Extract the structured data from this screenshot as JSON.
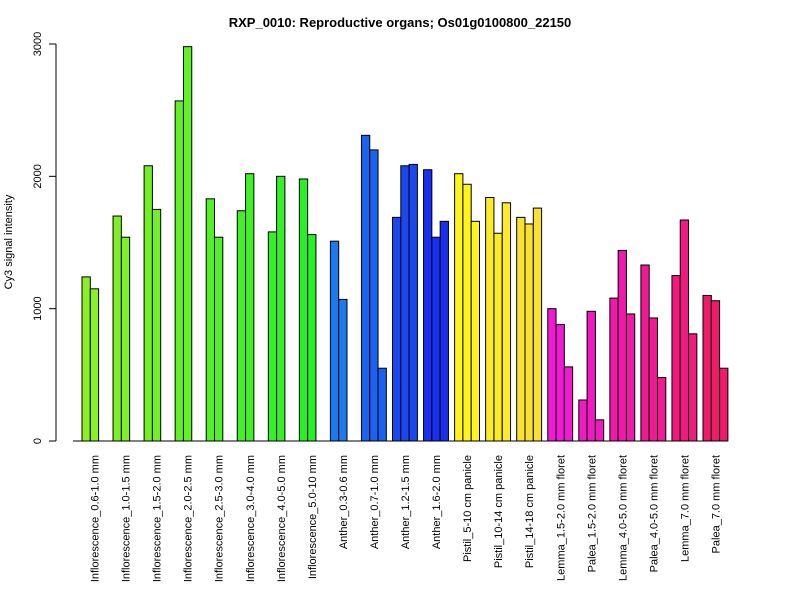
{
  "chart_data": {
    "type": "bar",
    "title": "RXP_0010: Reproductive organs; Os01g0100800_22150",
    "xlabel": "",
    "ylabel": "Cy3 signal intensity",
    "ylim": [
      0,
      3000
    ],
    "yticks": [
      "0",
      "1000",
      "2000",
      "3000"
    ],
    "grid": false,
    "groups": [
      {
        "label": "Inflorescence_0.6-1.0 mm",
        "color": "#8cf026",
        "values": [
          1240,
          1150
        ]
      },
      {
        "label": "Inflorescence_1.0-1.5 mm",
        "color": "#80f026",
        "values": [
          1700,
          1540
        ]
      },
      {
        "label": "Inflorescence_1.5-2.0 mm",
        "color": "#72f026",
        "values": [
          2080,
          1750
        ]
      },
      {
        "label": "Inflorescence_2.0-2.5 mm",
        "color": "#62f026",
        "values": [
          2570,
          2980
        ]
      },
      {
        "label": "Inflorescence_2.5-3.0 mm",
        "color": "#52f026",
        "values": [
          1830,
          1540
        ]
      },
      {
        "label": "Inflorescence_3.0-4.0 mm",
        "color": "#42f026",
        "values": [
          1740,
          2020
        ]
      },
      {
        "label": "Inflorescence_4.0-5.0 mm",
        "color": "#34f026",
        "values": [
          1580,
          2000
        ]
      },
      {
        "label": "Inflorescence_5.0-10 mm",
        "color": "#26f026",
        "values": [
          1980,
          1560
        ]
      },
      {
        "label": "Anther_0.3-0.6 mm",
        "color": "#1a7af0",
        "values": [
          1510,
          1070
        ]
      },
      {
        "label": "Anther_0.7-1.0 mm",
        "color": "#1a62f0",
        "values": [
          2310,
          2200,
          550
        ]
      },
      {
        "label": "Anther_1.2-1.5 mm",
        "color": "#1a48f0",
        "values": [
          1690,
          2080,
          2090
        ]
      },
      {
        "label": "Anther_1.6-2.0 mm",
        "color": "#1a30f0",
        "values": [
          2050,
          1540,
          1660
        ]
      },
      {
        "label": "Pistil_5-10 cm panicle",
        "color": "#fff51a",
        "values": [
          2020,
          1940,
          1660
        ]
      },
      {
        "label": "Pistil_10-14 cm panicle",
        "color": "#fceb26",
        "values": [
          1840,
          1570,
          1800
        ]
      },
      {
        "label": "Pistil_14-18 cm panicle",
        "color": "#fae030",
        "values": [
          1690,
          1640,
          1760
        ]
      },
      {
        "label": "Lemma_1.5-2.0 mm floret",
        "color": "#f01ad2",
        "values": [
          1000,
          880,
          560
        ]
      },
      {
        "label": "Palea_1.5-2.0 mm floret",
        "color": "#f01ac2",
        "values": [
          310,
          980,
          160
        ]
      },
      {
        "label": "Lemma_4.0-5.0 mm floret",
        "color": "#f01aaa",
        "values": [
          1080,
          1440,
          960
        ]
      },
      {
        "label": "Palea_4.0-5.0 mm floret",
        "color": "#f01a95",
        "values": [
          1330,
          930,
          480
        ]
      },
      {
        "label": "Lemma_7.0 mm floret",
        "color": "#f01a80",
        "values": [
          1250,
          1670,
          810
        ]
      },
      {
        "label": "Palea_7.0 mm floret",
        "color": "#f01a6a",
        "values": [
          1100,
          1060,
          550
        ]
      }
    ]
  }
}
